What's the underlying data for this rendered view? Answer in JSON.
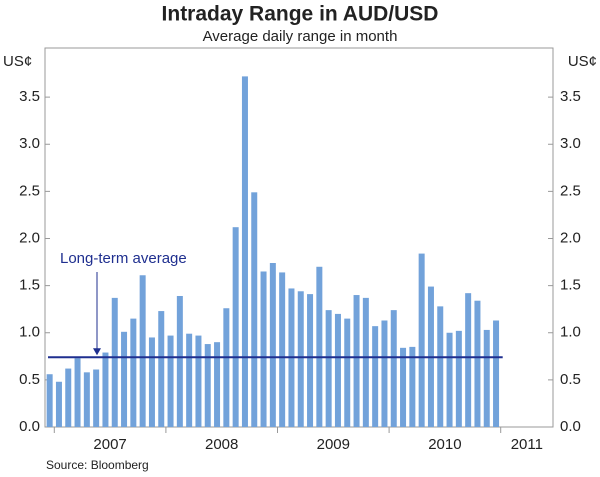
{
  "chart_data": {
    "type": "bar",
    "title": "Intraday Range in AUD/USD",
    "subtitle": "Average daily range in month",
    "y_unit_left": "US¢",
    "y_unit_right": "US¢",
    "source": "Source: Bloomberg",
    "color": "#72a2da",
    "categories": [
      null,
      null,
      null,
      null,
      null,
      null,
      null,
      null,
      null,
      null,
      null,
      null,
      null,
      null,
      null,
      null,
      null,
      null,
      null,
      null,
      null,
      null,
      null,
      null,
      null,
      null,
      null,
      null,
      null,
      null,
      null,
      null,
      null,
      null,
      null,
      null,
      null,
      null,
      null,
      null,
      null,
      null,
      null,
      null,
      null,
      null,
      null,
      null,
      null
    ],
    "values": [
      0.56,
      0.48,
      0.62,
      0.73,
      0.58,
      0.61,
      0.79,
      1.37,
      1.01,
      1.15,
      1.61,
      0.95,
      1.23,
      0.97,
      1.39,
      0.99,
      0.97,
      0.88,
      0.9,
      1.26,
      2.12,
      3.72,
      2.49,
      1.65,
      1.74,
      1.64,
      1.47,
      1.44,
      1.41,
      1.7,
      1.24,
      1.2,
      1.15,
      1.4,
      1.37,
      1.07,
      1.13,
      1.24,
      0.84,
      0.85,
      1.84,
      1.49,
      1.28,
      1.0,
      1.02,
      1.42,
      1.34,
      1.03,
      1.13
    ],
    "x_year_labels": [
      "2007",
      "2008",
      "2009",
      "2010",
      "2011"
    ],
    "reference_line": {
      "label": "Long-term average",
      "value": 0.74,
      "color": "#1f2f8f"
    },
    "ylim": [
      0,
      4
    ],
    "yticks": [
      {
        "value": 0,
        "label": "0.0"
      },
      {
        "value": 0.5,
        "label": "0.5"
      },
      {
        "value": 1,
        "label": "1.0"
      },
      {
        "value": 1.5,
        "label": "1.5"
      },
      {
        "value": 2,
        "label": "2.0"
      },
      {
        "value": 2.5,
        "label": "2.5"
      },
      {
        "value": 3,
        "label": "3.0"
      },
      {
        "value": 3.5,
        "label": "3.5"
      }
    ],
    "grid": false
  }
}
